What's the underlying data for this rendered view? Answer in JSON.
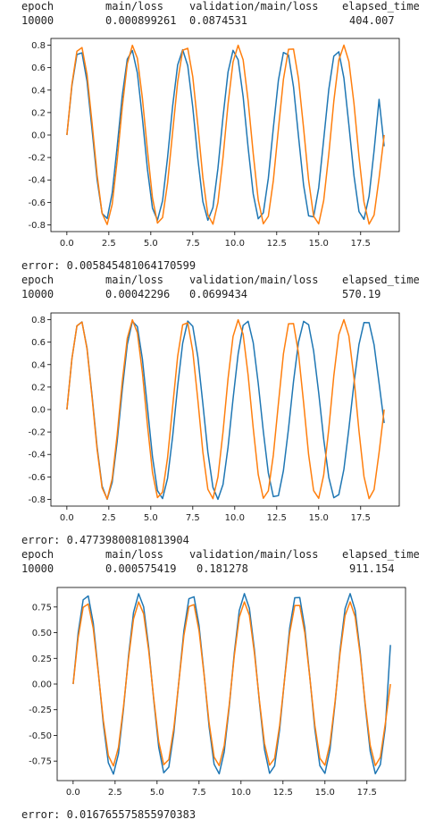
{
  "runs": [
    {
      "header": {
        "epoch": "epoch",
        "main_loss": "main/loss",
        "val_loss": "validation/main/loss",
        "elapsed": "elapsed_time"
      },
      "values": {
        "epoch": "10000",
        "main_loss": "0.000899261",
        "val_loss": "0.0874531",
        "elapsed": "404.007"
      },
      "error_text": "error: 0.005845481064170599"
    },
    {
      "header": {
        "epoch": "epoch",
        "main_loss": "main/loss",
        "val_loss": "validation/main/loss",
        "elapsed": "elapsed_time"
      },
      "values": {
        "epoch": "10000",
        "main_loss": "0.00042296",
        "val_loss": "0.0699434",
        "elapsed": "570.19"
      },
      "error_text": "error: 0.47739800810813904"
    },
    {
      "header": {
        "epoch": "epoch",
        "main_loss": "main/loss",
        "val_loss": "validation/main/loss",
        "elapsed": "elapsed_time"
      },
      "values": {
        "epoch": "10000",
        "main_loss": "0.000575419",
        "val_loss": "0.181278",
        "elapsed": "911.154"
      },
      "error_text": "error: 0.016765575855970383"
    }
  ],
  "chart_data": [
    {
      "type": "line",
      "title": "",
      "xlabel": "",
      "ylabel": "",
      "xlim": [
        -0.95,
        19.8
      ],
      "ylim": [
        -0.86,
        0.86
      ],
      "xticks": [
        "0.0",
        "2.5",
        "5.0",
        "7.5",
        "10.0",
        "12.5",
        "15.0",
        "17.5"
      ],
      "yticks": [
        "0.8",
        "0.6",
        "0.4",
        "0.2",
        "0.0",
        "-0.2",
        "-0.4",
        "-0.6",
        "-0.8"
      ],
      "series": [
        {
          "color": "#1f77b4",
          "formula": "0.76*sin(2.05*x)",
          "x_range": [
            0,
            18.9
          ],
          "step": 0.3,
          "end_value": -0.1
        },
        {
          "color": "#ff7f0e",
          "formula": "0.8*sin(2*x)",
          "x_range": [
            0,
            18.9
          ],
          "step": 0.3,
          "end_value": 0.0
        }
      ],
      "legend": "none",
      "grid": false
    },
    {
      "type": "line",
      "title": "",
      "xlabel": "",
      "ylabel": "",
      "xlim": [
        -0.95,
        19.8
      ],
      "ylim": [
        -0.86,
        0.86
      ],
      "xticks": [
        "0.0",
        "2.5",
        "5.0",
        "7.5",
        "10.0",
        "12.5",
        "15.0",
        "17.5"
      ],
      "yticks": [
        "0.8",
        "0.6",
        "0.4",
        "0.2",
        "0.0",
        "-0.2",
        "-0.4",
        "-0.6",
        "-0.8"
      ],
      "series": [
        {
          "color": "#1f77b4",
          "formula": "0.8*sin(x*(2 - 0.0085*x))",
          "x_range": [
            0,
            18.9
          ],
          "step": 0.3,
          "end_value": -0.12
        },
        {
          "color": "#ff7f0e",
          "formula": "0.8*sin(2*x)",
          "x_range": [
            0,
            18.9
          ],
          "step": 0.3,
          "end_value": 0.0
        }
      ],
      "legend": "none",
      "grid": false
    },
    {
      "type": "line",
      "title": "",
      "xlabel": "",
      "ylabel": "",
      "xlim": [
        -0.95,
        19.8
      ],
      "ylim": [
        -0.94,
        0.94
      ],
      "xticks": [
        "0.0",
        "2.5",
        "5.0",
        "7.5",
        "10.0",
        "12.5",
        "15.0",
        "17.5"
      ],
      "yticks": [
        "0.75",
        "0.50",
        "0.25",
        "0.00",
        "-0.25",
        "-0.50",
        "-0.75"
      ],
      "series": [
        {
          "color": "#1f77b4",
          "formula": "0.88*sin(2*x)",
          "x_range": [
            0,
            18.9
          ],
          "step": 0.3,
          "end_value": 0.38
        },
        {
          "color": "#ff7f0e",
          "formula": "0.8*sin(2*x)",
          "x_range": [
            0,
            18.9
          ],
          "step": 0.3,
          "end_value": 0.0
        }
      ],
      "legend": "none",
      "grid": false
    }
  ]
}
